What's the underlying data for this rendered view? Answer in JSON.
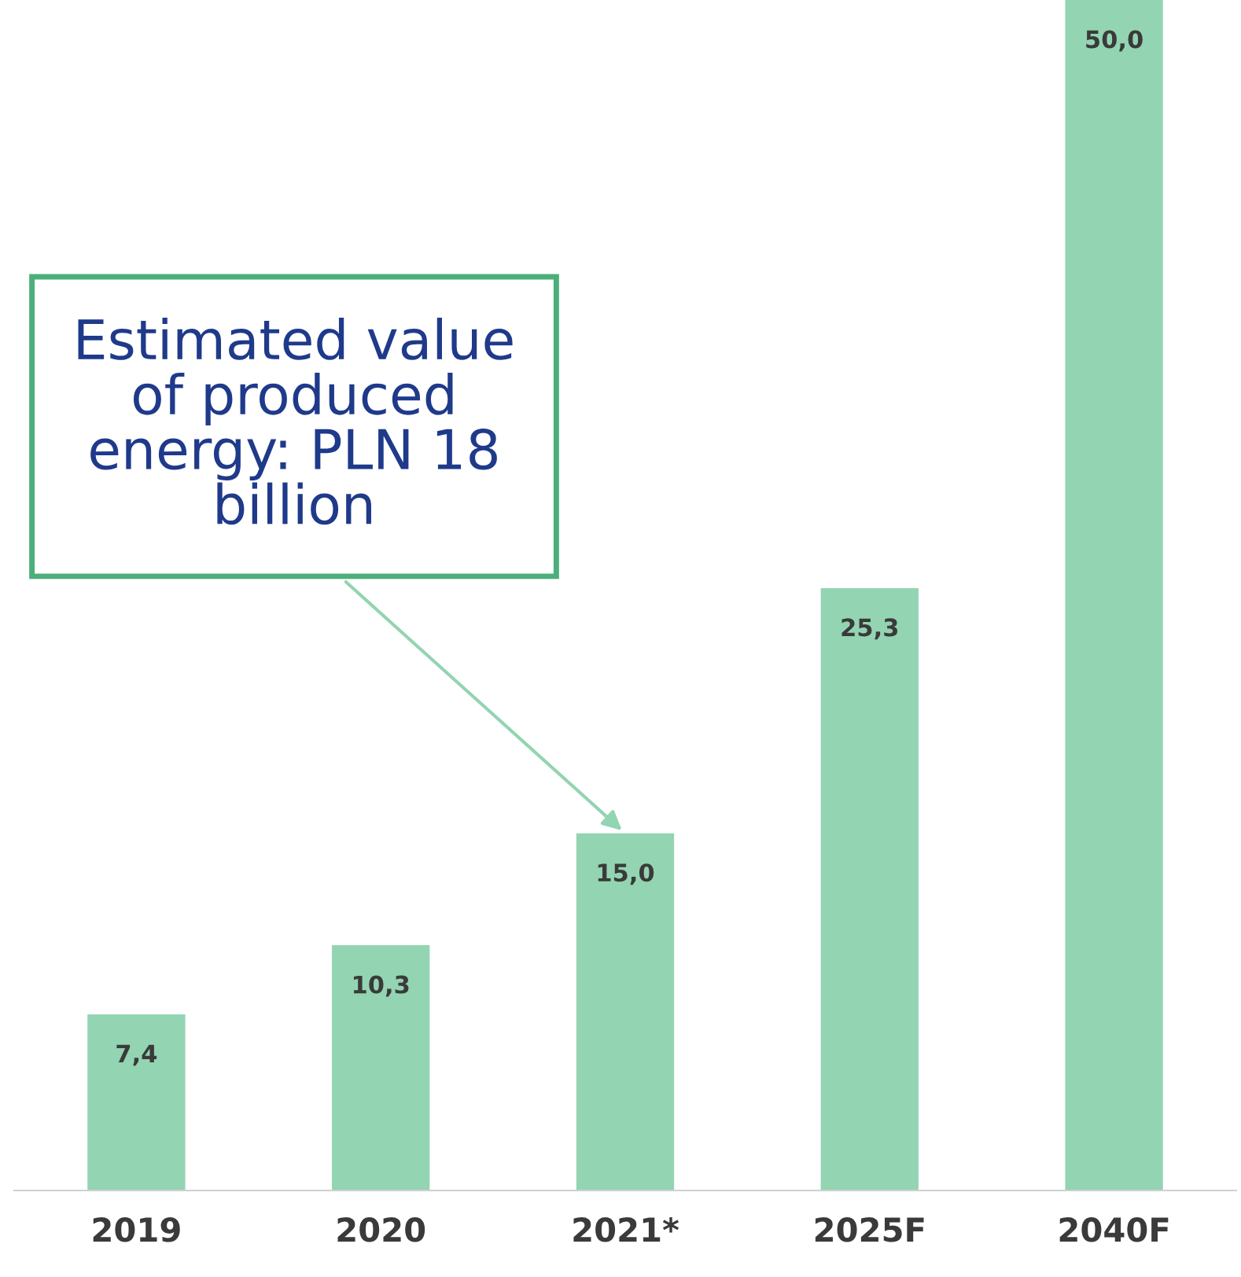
{
  "chart_data": {
    "type": "bar",
    "categories": [
      "2019",
      "2020",
      "2021*",
      "2025F",
      "2040F"
    ],
    "values": [
      7.4,
      10.3,
      15.0,
      25.3,
      50.0
    ],
    "value_labels": [
      "7,4",
      "10,3",
      "15,0",
      "25,3",
      "50,0"
    ],
    "color": "#93d4b2",
    "ylim": [
      0,
      50
    ],
    "tick_labels": "x",
    "annotations": [
      {
        "text": "Estimated value\nof produced\nenergy: PLN 18\nbillion",
        "x": "2021*",
        "y": 15.0
      }
    ],
    "grid": false,
    "legend": false
  }
}
